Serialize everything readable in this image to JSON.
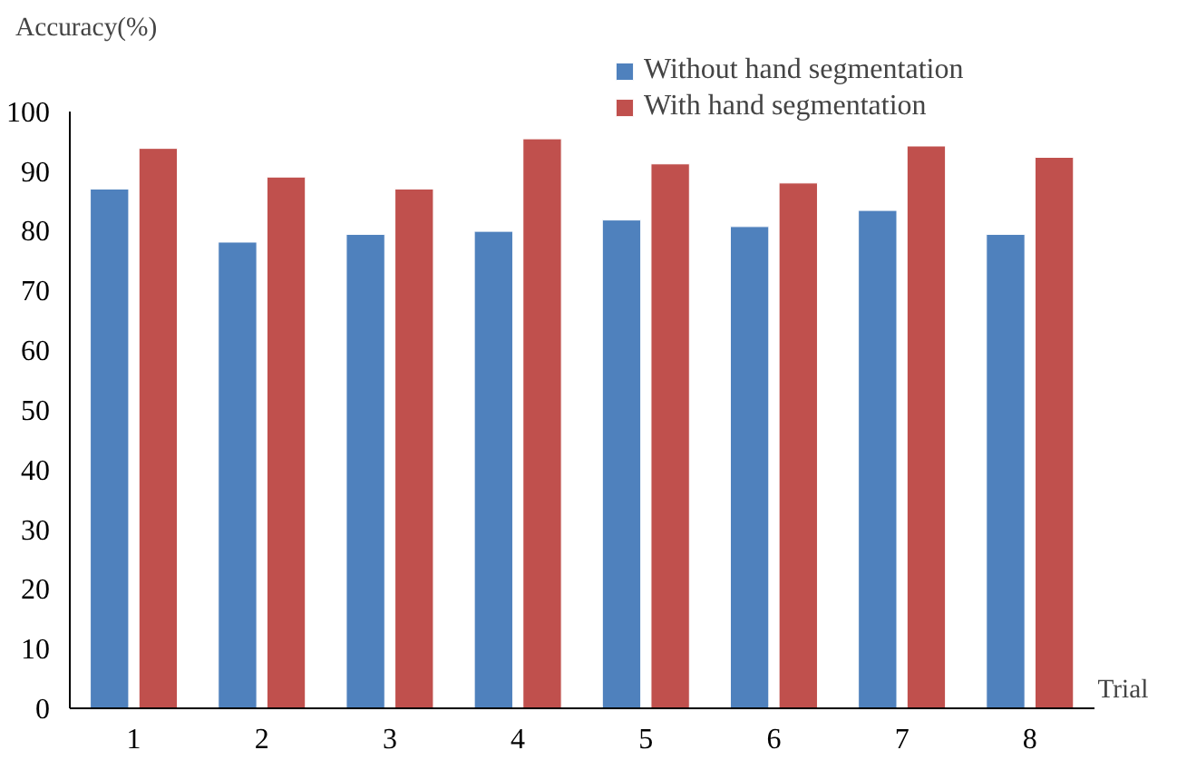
{
  "chart_data": {
    "type": "bar",
    "xlabel": "Trial",
    "ylabel": "Accuracy(%)",
    "categories": [
      "1",
      "2",
      "3",
      "4",
      "5",
      "6",
      "7",
      "8"
    ],
    "series": [
      {
        "name": "Without hand segmentation",
        "color": "#4f81bd",
        "values": [
          87.0,
          78.1,
          79.4,
          79.9,
          81.8,
          80.7,
          83.4,
          79.4
        ]
      },
      {
        "name": "With hand segmentation",
        "color": "#c0504d",
        "values": [
          93.8,
          89.0,
          87.0,
          95.4,
          91.2,
          88.0,
          94.2,
          92.3
        ]
      }
    ],
    "ylim": [
      0,
      100
    ],
    "yticks": [
      0,
      10,
      20,
      30,
      40,
      50,
      60,
      70,
      80,
      90,
      100
    ],
    "grid": false,
    "legend": "top right"
  }
}
